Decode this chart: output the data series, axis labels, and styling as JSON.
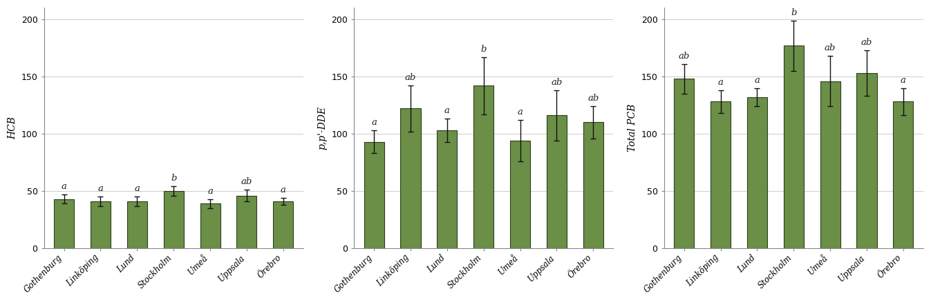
{
  "categories": [
    "Gothenburg",
    "Linköping",
    "Lund",
    "Stockholm",
    "Umeå",
    "Uppsala",
    "Örebro"
  ],
  "panels": [
    {
      "ylabel": "HCB",
      "values": [
        43,
        41,
        41,
        50,
        39,
        46,
        41
      ],
      "errors": [
        4,
        4,
        4,
        4,
        4,
        5,
        3
      ],
      "letters": [
        "a",
        "a",
        "a",
        "b",
        "a",
        "ab",
        "a"
      ],
      "ylim": [
        0,
        210
      ],
      "yticks": [
        0,
        50,
        100,
        150,
        200
      ]
    },
    {
      "ylabel": "p,p'-DDE",
      "values": [
        93,
        122,
        103,
        142,
        94,
        116,
        110
      ],
      "errors": [
        10,
        20,
        10,
        25,
        18,
        22,
        14
      ],
      "letters": [
        "a",
        "ab",
        "a",
        "b",
        "a",
        "ab",
        "ab"
      ],
      "ylim": [
        0,
        210
      ],
      "yticks": [
        0,
        50,
        100,
        150,
        200
      ]
    },
    {
      "ylabel": "Total PCB",
      "values": [
        148,
        128,
        132,
        177,
        146,
        153,
        128
      ],
      "errors": [
        13,
        10,
        8,
        22,
        22,
        20,
        12
      ],
      "letters": [
        "ab",
        "a",
        "a",
        "b",
        "ab",
        "ab",
        "a"
      ],
      "ylim": [
        0,
        210
      ],
      "yticks": [
        0,
        50,
        100,
        150,
        200
      ]
    }
  ],
  "bar_color": "#6b8f47",
  "bar_edge_color": "#2b3d1a",
  "bar_width": 0.55,
  "error_color": "#111111",
  "letter_fontsize": 9.5,
  "ylabel_fontsize": 10,
  "tick_fontsize": 9,
  "xtick_fontsize": 8.5,
  "background_color": "#ffffff",
  "grid_color": "#cccccc",
  "grid_linewidth": 0.7,
  "figure_facecolor": "#ffffff"
}
